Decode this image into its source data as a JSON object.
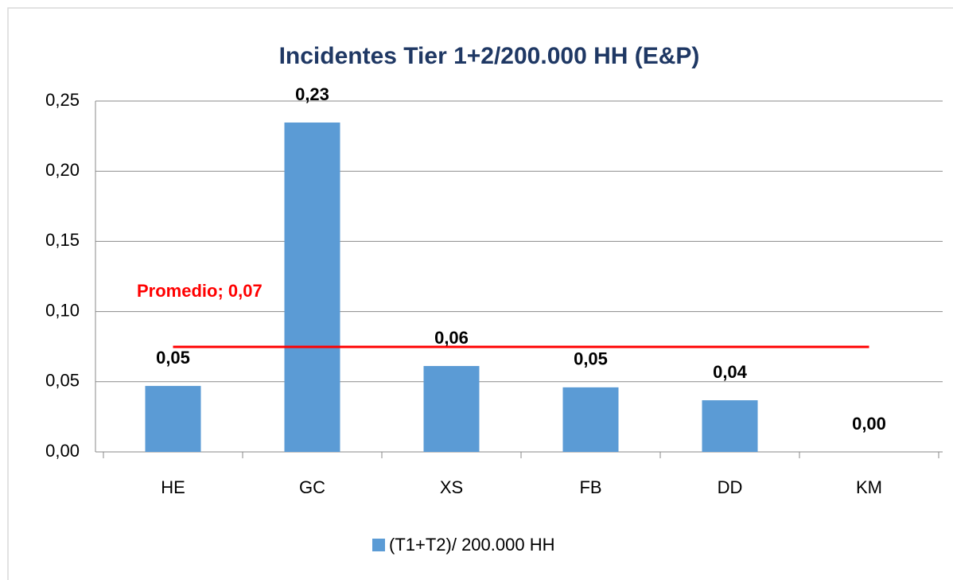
{
  "chart_data": {
    "type": "bar",
    "title": "Incidentes Tier 1+2/200.000 HH (E&P)",
    "categories": [
      "HE",
      "GC",
      "XS",
      "FB",
      "DD",
      "KM"
    ],
    "series": [
      {
        "name": "(T1+T2)/ 200.000 HH",
        "color": "#5b9bd5",
        "values": [
          0.047,
          0.2347,
          0.0612,
          0.046,
          0.0368,
          0
        ],
        "value_labels": [
          "0,05",
          "0,23",
          "0,06",
          "0,05",
          "0,04",
          "0,00"
        ]
      }
    ],
    "average_line": {
      "value": 0.0748,
      "label": "Promedio; 0,07",
      "color": "#ff0000"
    },
    "ylim": [
      0,
      0.25
    ],
    "yticks": [
      {
        "value": 0,
        "label": "0,00"
      },
      {
        "value": 0.05,
        "label": "0,05"
      },
      {
        "value": 0.1,
        "label": "0,10"
      },
      {
        "value": 0.15,
        "label": "0,15"
      },
      {
        "value": 0.2,
        "label": "0,20"
      },
      {
        "value": 0.25,
        "label": "0,25"
      }
    ],
    "grid": true
  }
}
